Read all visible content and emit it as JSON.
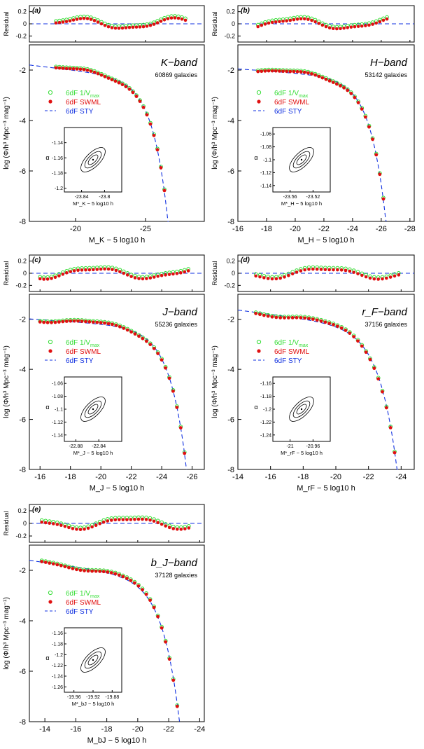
{
  "figure": {
    "legend_labels": {
      "vmax": "6dF 1/V",
      "vmax_sub": "max",
      "swml": "6dF SWML",
      "sty": "6dF STY"
    },
    "residual_ylabel": "Residual",
    "main_ylabel": "log (Φ/h³ Mpc⁻³ mag⁻¹)",
    "colors": {
      "vmax": "#33dd33",
      "swml": "#e01010",
      "sty": "#1030e0",
      "axis": "#000000",
      "residual_line": "#1030e0"
    }
  },
  "chart_data": [
    {
      "type": "scatter",
      "panel": "(a)",
      "band_label": "K−band",
      "ngal": "60869 galaxies",
      "xlabel": "M_K − 5 log10 h",
      "xlim": [
        -16.7,
        -29.2
      ],
      "xticks": [
        -20,
        -25
      ],
      "ylim": [
        -8,
        -1
      ],
      "yticks": [
        -2,
        -4,
        -6,
        -8
      ],
      "res_ylim": [
        -0.3,
        0.3
      ],
      "res_yticks": [
        0.2,
        0,
        -0.2
      ],
      "schechter": {
        "Mstar": -23.83,
        "alpha": -1.16,
        "logphi": -2.22
      },
      "x_start": -18.6,
      "x_end": -28.0,
      "step": 0.25,
      "inset": {
        "xlabel": "M*_K − 5 log10 h",
        "xticks": [
          -23.84,
          -23.8
        ],
        "xlim": [
          -23.87,
          -23.77
        ],
        "ylabel": "α",
        "yticks": [
          -1.14,
          -1.16,
          -1.18,
          -1.2
        ],
        "ylim": [
          -1.205,
          -1.12
        ]
      }
    },
    {
      "type": "scatter",
      "panel": "(b)",
      "band_label": "H−band",
      "ngal": "53142 galaxies",
      "xlabel": "M_H − 5 log10 h",
      "xlim": [
        -16.0,
        -28.3
      ],
      "xticks": [
        -16,
        -18,
        -20,
        -22,
        -24,
        -26,
        -28
      ],
      "ylim": [
        -8,
        -1
      ],
      "yticks": [
        -2,
        -4,
        -6,
        -8
      ],
      "res_ylim": [
        -0.3,
        0.3
      ],
      "res_yticks": [
        0.2,
        0,
        -0.2
      ],
      "schechter": {
        "Mstar": -23.54,
        "alpha": -1.1,
        "logphi": -2.22
      },
      "x_start": -17.4,
      "x_end": -26.4,
      "step": 0.25,
      "inset": {
        "xlabel": "M*_H − 5 log10 h",
        "xticks": [
          -23.56,
          -23.52
        ],
        "xlim": [
          -23.59,
          -23.49
        ],
        "ylabel": "α",
        "yticks": [
          -1.06,
          -1.08,
          -1.1,
          -1.12,
          -1.14
        ],
        "ylim": [
          -1.15,
          -1.05
        ]
      }
    },
    {
      "type": "scatter",
      "panel": "(c)",
      "band_label": "J−band",
      "ngal": "55236 galaxies",
      "xlabel": "M_J − 5 log10 h",
      "xlim": [
        -15.3,
        -26.8
      ],
      "xticks": [
        -16,
        -18,
        -20,
        -22,
        -24,
        -26
      ],
      "ylim": [
        -8,
        -1
      ],
      "yticks": [
        -2,
        -4,
        -6,
        -8
      ],
      "res_ylim": [
        -0.3,
        0.3
      ],
      "res_yticks": [
        0.2,
        0,
        -0.2
      ],
      "schechter": {
        "Mstar": -22.85,
        "alpha": -1.1,
        "logphi": -2.25
      },
      "x_start": -16.0,
      "x_end": -25.8,
      "step": 0.25,
      "inset": {
        "xlabel": "M*_J − 5 log10 h",
        "xticks": [
          -22.88,
          -22.84
        ],
        "xlim": [
          -22.9,
          -22.8
        ],
        "ylabel": "α",
        "yticks": [
          -1.06,
          -1.08,
          -1.1,
          -1.12,
          -1.14
        ],
        "ylim": [
          -1.15,
          -1.05
        ]
      }
    },
    {
      "type": "scatter",
      "panel": "(d)",
      "band_label": "r_F−band",
      "ngal": "37156 galaxies",
      "xlabel": "M_rF − 5 log10 h",
      "xlim": [
        -14.0,
        -24.8
      ],
      "xticks": [
        -14,
        -16,
        -18,
        -20,
        -22,
        -24
      ],
      "ylim": [
        -8,
        -1
      ],
      "yticks": [
        -2,
        -4,
        -6,
        -8
      ],
      "res_ylim": [
        -0.3,
        0.3
      ],
      "res_yticks": [
        0.2,
        0,
        -0.2
      ],
      "schechter": {
        "Mstar": -20.98,
        "alpha": -1.21,
        "logphi": -2.18
      },
      "x_start": -15.1,
      "x_end": -23.9,
      "step": 0.25,
      "inset": {
        "xlabel": "M*_rF − 5 log10 h",
        "xticks": [
          -21,
          -20.96
        ],
        "xlim": [
          -21.03,
          -20.93
        ],
        "ylabel": "α",
        "yticks": [
          -1.16,
          -1.18,
          -1.2,
          -1.22,
          -1.24
        ],
        "ylim": [
          -1.25,
          -1.15
        ]
      }
    },
    {
      "type": "scatter",
      "panel": "(e)",
      "band_label": "b_J−band",
      "ngal": "37128 galaxies",
      "xlabel": "M_bJ − 5 log10 h",
      "xlim": [
        -13.0,
        -24.3
      ],
      "xticks": [
        -14,
        -16,
        -18,
        -20,
        -22,
        -24
      ],
      "ylim": [
        -8,
        -1
      ],
      "yticks": [
        -2,
        -4,
        -6,
        -8
      ],
      "res_ylim": [
        -0.3,
        0.3
      ],
      "res_yticks": [
        0.2,
        0,
        -0.2
      ],
      "schechter": {
        "Mstar": -19.92,
        "alpha": -1.21,
        "logphi": -2.15
      },
      "x_start": -13.8,
      "x_end": -23.3,
      "step": 0.25,
      "inset": {
        "xlabel": "M*_bJ − 5 log10 h",
        "xticks": [
          -19.96,
          -19.92,
          -19.88
        ],
        "xlim": [
          -19.98,
          -19.86
        ],
        "ylabel": "α",
        "yticks": [
          -1.16,
          -1.18,
          -1.2,
          -1.22,
          -1.24,
          -1.26
        ],
        "ylim": [
          -1.27,
          -1.15
        ]
      }
    }
  ]
}
